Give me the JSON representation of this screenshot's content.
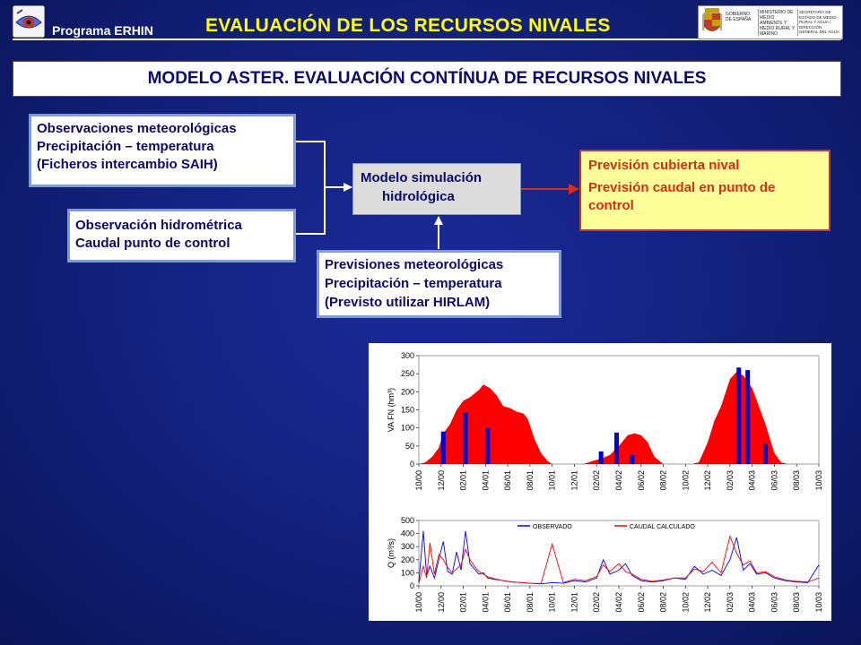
{
  "header": {
    "program_label": "Programa ERHIN",
    "title": "EVALUACIÓN DE LOS RECURSOS NIVALES",
    "title_color": "#ffff00",
    "left_logo_icon": "eye-logo-icon",
    "gov_logo": {
      "col1": "GOBIERNO DE ESPAÑA",
      "col2": "MINISTERIO DE MEDIO AMBIENTE Y MEDIO RURAL Y MARINO",
      "col3": "SECRETARÍA DE ESTADO DE MEDIO RURAL Y AGUA / DIRECCIÓN GENERAL DEL AGUA"
    }
  },
  "subtitle": "MODELO ASTER. EVALUACIÓN CONTÍNUA DE RECURSOS NIVALES",
  "flow": {
    "obs_met": [
      "Observaciones meteorológicas",
      "Precipitación – temperatura",
      "(Ficheros intercambio SAIH)"
    ],
    "obs_hid": [
      "Observación hidrométrica",
      "Caudal punto de control"
    ],
    "model": [
      "Modelo simulación",
      "hidrológica"
    ],
    "prev_met": [
      "Previsiones meteorológicas",
      "Precipitación – temperatura",
      "(Previsto utilizar HIRLAM)"
    ],
    "result": [
      "Previsión cubierta nival",
      "Previsión caudal  en punto de control"
    ],
    "arrow_color_in": "#ffffff",
    "arrow_color_out": "#d62d14"
  },
  "chart_data": [
    {
      "type": "area",
      "ylabel": "VA FN (hm³)",
      "ylim": [
        0,
        300
      ],
      "yticks": [
        0,
        50,
        100,
        150,
        200,
        250,
        300
      ],
      "x_ticks": [
        "10/00",
        "12/00",
        "02/01",
        "04/01",
        "06/01",
        "08/01",
        "10/01",
        "12/01",
        "02/02",
        "04/02",
        "06/02",
        "08/02",
        "10/02",
        "12/02",
        "02/03",
        "04/03",
        "06/03",
        "08/03",
        "10/03"
      ],
      "series": [
        {
          "kind": "area",
          "color": "#ff0000",
          "x": [
            0,
            0.3,
            0.6,
            0.9,
            1.1,
            1.4,
            1.7,
            2.0,
            2.3,
            2.7,
            2.9,
            3.2,
            3.5,
            3.8,
            4.1,
            4.4,
            4.7,
            4.9,
            5.2,
            5.5,
            5.8,
            6.0,
            6.2,
            6.6,
            7.0,
            7.4,
            7.8,
            8.2,
            8.6,
            9.0,
            9.4,
            9.7,
            10.0,
            10.3,
            10.6,
            11.0,
            11.3,
            11.6,
            12.0,
            12.3,
            12.6,
            13.0,
            13.3,
            13.6,
            14.0,
            14.3,
            14.6,
            15.0,
            15.3,
            15.6,
            16.0,
            16.3,
            16.6,
            17.0,
            17.4,
            18.0
          ],
          "y": [
            0,
            5,
            20,
            45,
            85,
            110,
            150,
            175,
            185,
            205,
            220,
            210,
            190,
            160,
            155,
            145,
            140,
            125,
            70,
            30,
            8,
            0,
            0,
            0,
            0,
            0,
            8,
            15,
            25,
            50,
            80,
            85,
            80,
            60,
            20,
            0,
            0,
            0,
            0,
            0,
            5,
            60,
            120,
            160,
            235,
            255,
            245,
            210,
            160,
            110,
            30,
            5,
            0,
            0,
            0,
            0
          ]
        },
        {
          "kind": "bar",
          "color": "#0000cc",
          "x": [
            1.1,
            2.1,
            3.1,
            8.2,
            8.9,
            9.6,
            14.4,
            14.8,
            15.6
          ],
          "y": [
            90,
            143,
            100,
            35,
            87,
            25,
            267,
            260,
            57
          ]
        }
      ]
    },
    {
      "type": "line",
      "ylabel": "Q (m³/s)",
      "ylim": [
        0,
        500
      ],
      "yticks": [
        0,
        100,
        200,
        300,
        400,
        500
      ],
      "x_ticks": [
        "10/00",
        "12/00",
        "02/01",
        "04/01",
        "06/01",
        "08/01",
        "10/01",
        "12/01",
        "02/02",
        "04/02",
        "06/02",
        "08/02",
        "10/02",
        "12/02",
        "02/03",
        "04/03",
        "06/03",
        "08/03",
        "10/03"
      ],
      "legend": [
        "OBSERVADO",
        "CAUDAL CALCULADO"
      ],
      "legend_placement": "top",
      "series": [
        {
          "name": "OBSERVADO",
          "color": "#0000ff",
          "x": [
            0,
            0.2,
            0.35,
            0.5,
            0.7,
            0.9,
            1.1,
            1.3,
            1.5,
            1.7,
            1.9,
            2.1,
            2.3,
            2.5,
            2.7,
            2.9,
            3.1,
            3.4,
            3.8,
            4.2,
            4.6,
            5.0,
            5.5,
            6.0,
            6.5,
            7.0,
            7.5,
            8.0,
            8.3,
            8.6,
            9.0,
            9.3,
            9.6,
            10.0,
            10.5,
            11.0,
            11.5,
            12.0,
            12.4,
            12.8,
            13.2,
            13.6,
            14.0,
            14.3,
            14.6,
            14.9,
            15.2,
            15.6,
            16.0,
            16.5,
            17.0,
            17.5,
            18.0
          ],
          "y": [
            30,
            420,
            80,
            150,
            60,
            200,
            340,
            110,
            90,
            260,
            120,
            420,
            170,
            130,
            90,
            100,
            60,
            50,
            40,
            30,
            25,
            20,
            15,
            25,
            20,
            40,
            30,
            60,
            200,
            90,
            120,
            170,
            80,
            40,
            30,
            40,
            60,
            50,
            150,
            90,
            120,
            80,
            200,
            370,
            120,
            170,
            90,
            100,
            60,
            40,
            30,
            25,
            160
          ]
        },
        {
          "name": "CAUDAL CALCULADO",
          "color": "#ff0000",
          "x": [
            0,
            0.2,
            0.35,
            0.5,
            0.7,
            0.9,
            1.1,
            1.3,
            1.5,
            1.7,
            1.9,
            2.1,
            2.3,
            2.5,
            2.7,
            2.9,
            3.1,
            3.4,
            3.8,
            4.2,
            4.6,
            5.0,
            5.5,
            6.0,
            6.5,
            7.0,
            7.5,
            8.0,
            8.3,
            8.6,
            9.0,
            9.3,
            9.6,
            10.0,
            10.5,
            11.0,
            11.5,
            12.0,
            12.4,
            12.8,
            13.2,
            13.6,
            14.0,
            14.3,
            14.6,
            14.9,
            15.2,
            15.6,
            16.0,
            16.5,
            17.0,
            17.5,
            18.0
          ],
          "y": [
            20,
            150,
            60,
            330,
            90,
            240,
            200,
            140,
            100,
            130,
            160,
            280,
            200,
            150,
            110,
            90,
            70,
            55,
            40,
            30,
            25,
            20,
            18,
            320,
            25,
            50,
            40,
            70,
            160,
            110,
            170,
            110,
            90,
            50,
            35,
            45,
            60,
            60,
            130,
            110,
            180,
            100,
            380,
            250,
            160,
            190,
            100,
            110,
            70,
            45,
            35,
            30,
            60
          ]
        }
      ]
    }
  ]
}
